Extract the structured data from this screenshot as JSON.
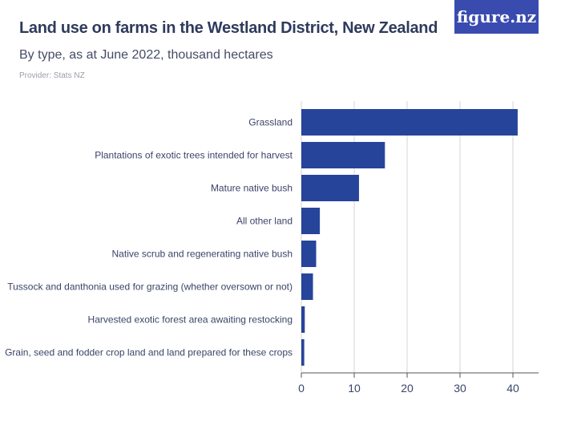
{
  "header": {
    "title": "Land use on farms in the Westland District, New Zealand",
    "subtitle": "By type, as at June 2022, thousand hectares",
    "provider": "Provider: Stats NZ",
    "logo": "figure.nz"
  },
  "chart_data": {
    "type": "bar",
    "orientation": "horizontal",
    "title": "Land use on farms in the Westland District, New Zealand",
    "subtitle": "By type, as at June 2022, thousand hectares",
    "categories": [
      "Grassland",
      "Plantations of exotic trees intended for harvest",
      "Mature native bush",
      "All other land",
      "Native scrub and regenerating native bush",
      "Tussock and danthonia used for grazing (whether oversown or not)",
      "Harvested exotic forest area awaiting restocking",
      "Grain, seed and fodder crop land and land prepared for these crops"
    ],
    "values": [
      40.9,
      15.8,
      10.9,
      3.5,
      2.8,
      2.2,
      0.65,
      0.55
    ],
    "xlim": [
      0,
      45
    ],
    "ticks": [
      0,
      10,
      20,
      30,
      40
    ],
    "grid": true,
    "bar_color": "#27449b"
  }
}
